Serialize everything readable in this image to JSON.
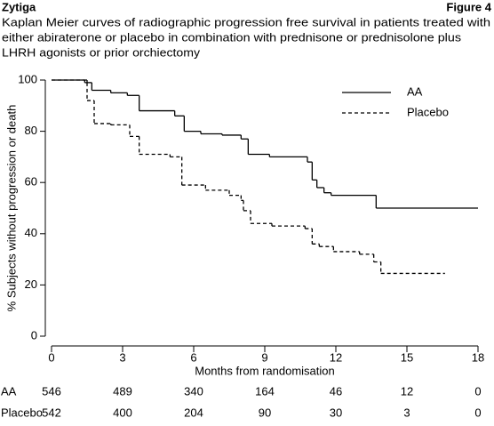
{
  "header": "Zytiga",
  "figure_label": "Figure 4",
  "chart_data": {
    "type": "step",
    "title": [
      "Kaplan Meier curves of radiographic progression free survival in patients treated with",
      "either abiraterone or placebo in combination with prednisone or prednisolone plus",
      "LHRH agonists or prior orchiectomy"
    ],
    "x_label": "Months from randomisation",
    "y_label": "% Subjects without progression or death",
    "xlim": [
      0,
      18
    ],
    "ylim": [
      0,
      100
    ],
    "xticks": [
      0,
      3,
      6,
      9,
      12,
      15,
      18
    ],
    "yticks": [
      0,
      20,
      40,
      60,
      80,
      100
    ],
    "legend": "upper right",
    "series": [
      {
        "name": "AA",
        "color": "#000000",
        "dash": "solid",
        "x": [
          0,
          1.5,
          1.7,
          2.5,
          3.2,
          3.7,
          5.2,
          5.6,
          6.3,
          7.2,
          8,
          8.3,
          9.2,
          10.8,
          11,
          11.2,
          11.5,
          11.8,
          13.7,
          18
        ],
        "values": [
          100,
          99,
          96,
          95,
          94,
          88,
          86,
          80,
          79,
          78.5,
          77,
          71,
          70,
          68,
          61,
          58,
          56,
          55,
          50,
          50
        ]
      },
      {
        "name": "Placebo",
        "color": "#000000",
        "dash": "dashed",
        "x": [
          0,
          1.4,
          1.5,
          1.8,
          2.5,
          3.3,
          3.7,
          5,
          5.5,
          6.5,
          7.5,
          8,
          8.1,
          8.4,
          9.3,
          10.7,
          11,
          11.3,
          11.9,
          13,
          13.6,
          13.9,
          16.6
        ],
        "values": [
          100,
          99,
          92,
          83,
          82.5,
          78,
          71,
          70,
          59,
          57,
          55,
          53,
          49,
          44,
          43,
          42,
          36,
          35,
          33,
          32,
          29,
          24.5,
          24.5
        ]
      }
    ],
    "at_risk": [
      {
        "name": "AA",
        "values": [
          546,
          489,
          340,
          164,
          46,
          12,
          0
        ]
      },
      {
        "name": "Placebo",
        "values": [
          542,
          400,
          204,
          90,
          30,
          3,
          0
        ]
      }
    ]
  }
}
